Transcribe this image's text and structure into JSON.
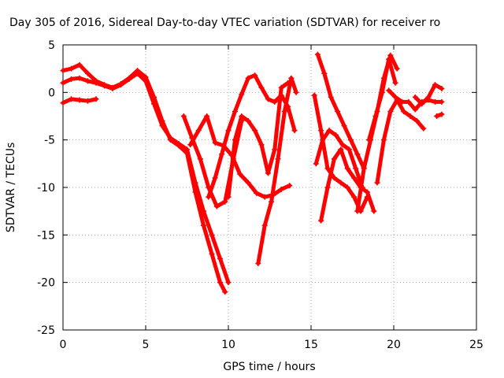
{
  "chart_data": {
    "type": "scatter",
    "title": "Day 305 of 2016, Sidereal Day-to-day VTEC variation (SDTVAR) for receiver ro",
    "xlabel": "GPS time / hours",
    "ylabel": "SDTVAR / TECUs",
    "xlim": [
      0,
      25
    ],
    "ylim": [
      -25,
      5
    ],
    "xticks": [
      "0",
      "5",
      "10",
      "15",
      "20",
      "25"
    ],
    "yticks": [
      "5",
      "0",
      "-5",
      "-10",
      "-15",
      "-20",
      "-25"
    ],
    "grid": true,
    "marker": "plus",
    "color": "#ff0000",
    "series": [
      {
        "x": [
          0.0,
          0.5,
          1.0,
          1.5,
          2.0,
          2.5,
          3.0,
          3.5,
          4.0,
          4.5,
          5.0,
          5.5,
          6.0,
          6.5,
          7.0,
          7.5,
          8.0,
          8.5,
          9.0,
          9.5,
          9.8
        ],
        "y": [
          2.3,
          2.5,
          2.9,
          2.0,
          1.2,
          0.8,
          0.5,
          0.9,
          1.5,
          2.3,
          1.6,
          -0.5,
          -3.0,
          -5.0,
          -5.6,
          -6.4,
          -10.5,
          -14.0,
          -17.0,
          -20.0,
          -21.0
        ]
      },
      {
        "x": [
          0.0,
          0.5,
          1.0,
          1.5,
          2.0,
          2.5,
          3.0,
          3.5,
          4.0,
          4.5,
          5.0,
          5.5,
          6.0,
          6.5,
          7.0,
          7.5,
          8.0,
          8.5,
          9.0,
          9.5,
          10.0
        ],
        "y": [
          1.0,
          1.4,
          1.5,
          1.2,
          1.0,
          0.7,
          0.4,
          0.8,
          1.4,
          2.0,
          1.2,
          -1.2,
          -3.5,
          -4.8,
          -5.4,
          -6.0,
          -9.5,
          -12.5,
          -15.0,
          -17.5,
          -20.0
        ]
      },
      {
        "x": [
          0.0,
          0.5,
          1.0,
          1.5,
          2.0
        ],
        "y": [
          -1.1,
          -0.7,
          -0.8,
          -0.9,
          -0.7
        ]
      },
      {
        "x": [
          7.3,
          7.8,
          8.3,
          8.8,
          9.3,
          9.8,
          10.3,
          10.8
        ],
        "y": [
          -2.5,
          -4.8,
          -7.0,
          -10.0,
          -12.0,
          -11.5,
          -7.0,
          -3.0
        ]
      },
      {
        "x": [
          7.7,
          8.2,
          8.7,
          9.2,
          9.7,
          10.2,
          10.7,
          11.2,
          11.7,
          12.2,
          12.7,
          13.2,
          13.7
        ],
        "y": [
          -5.5,
          -4.0,
          -2.5,
          -5.3,
          -5.6,
          -6.6,
          -8.6,
          -9.5,
          -10.6,
          -11.0,
          -10.8,
          -10.2,
          -9.8
        ]
      },
      {
        "x": [
          8.8,
          9.2,
          9.6,
          10.0,
          10.4,
          10.8,
          11.2,
          11.6,
          12.0,
          12.4,
          12.8,
          13.2,
          13.6,
          14.0
        ],
        "y": [
          -11.0,
          -9.0,
          -6.5,
          -4.0,
          -2.0,
          -0.2,
          1.5,
          1.8,
          0.5,
          -0.7,
          -1.0,
          -0.3,
          -1.5,
          -4.0
        ]
      },
      {
        "x": [
          10.0,
          10.4,
          10.8,
          11.2,
          11.6,
          12.0,
          12.4,
          12.8,
          13.2,
          13.6
        ],
        "y": [
          -11.0,
          -5.0,
          -2.5,
          -3.0,
          -4.0,
          -5.5,
          -8.5,
          -6.0,
          0.5,
          1.0
        ]
      },
      {
        "x": [
          11.8,
          12.2,
          12.6,
          13.0,
          13.4,
          13.8,
          14.1
        ],
        "y": [
          -18.0,
          -14.0,
          -11.5,
          -7.0,
          -2.0,
          1.5,
          0.0
        ]
      },
      {
        "x": [
          15.3,
          15.7,
          16.1,
          16.5,
          16.9,
          17.3,
          17.7,
          18.1
        ],
        "y": [
          -7.5,
          -5.0,
          -4.0,
          -4.5,
          -5.5,
          -6.0,
          -8.0,
          -10.0
        ]
      },
      {
        "x": [
          15.6,
          16.0,
          16.4,
          16.8,
          17.2,
          17.6,
          18.0,
          18.4,
          18.8
        ],
        "y": [
          -13.5,
          -10.0,
          -7.0,
          -6.0,
          -8.0,
          -9.0,
          -10.0,
          -10.5,
          -12.5
        ]
      },
      {
        "x": [
          15.2,
          15.6,
          16.0,
          16.4,
          16.8,
          17.2,
          17.6,
          18.0,
          18.4
        ],
        "y": [
          -0.3,
          -4.0,
          -8.0,
          -9.0,
          -9.5,
          -10.0,
          -11.0,
          -12.5,
          -11.0
        ]
      },
      {
        "x": [
          15.4,
          15.8,
          16.2,
          16.6,
          17.0,
          17.4,
          17.8,
          18.2
        ],
        "y": [
          4.0,
          2.0,
          -0.5,
          -2.0,
          -3.5,
          -5.0,
          -6.5,
          -8.0
        ]
      },
      {
        "x": [
          17.8,
          18.2,
          18.6,
          19.0,
          19.4,
          19.8,
          20.2
        ],
        "y": [
          -12.5,
          -8.0,
          -5.0,
          -2.0,
          1.5,
          3.9,
          2.5
        ]
      },
      {
        "x": [
          18.5,
          18.9,
          19.3,
          19.7,
          20.1
        ],
        "y": [
          -5.0,
          -2.5,
          0.0,
          3.5,
          1.0
        ]
      },
      {
        "x": [
          19.0,
          19.4,
          19.8,
          20.2,
          20.6,
          21.0,
          21.4,
          21.8
        ],
        "y": [
          -9.5,
          -5.0,
          -2.0,
          -0.8,
          -2.0,
          -2.5,
          -3.0,
          -3.8
        ]
      },
      {
        "x": [
          19.7,
          20.1,
          20.5,
          20.9,
          21.3,
          21.7,
          22.1,
          22.5,
          22.9
        ],
        "y": [
          0.2,
          -0.5,
          -1.0,
          -1.0,
          -1.8,
          -1.0,
          -0.8,
          -1.0,
          -1.0
        ]
      },
      {
        "x": [
          21.3,
          21.7,
          22.1,
          22.5,
          22.9
        ],
        "y": [
          -0.5,
          -1.2,
          -0.5,
          0.8,
          0.4
        ]
      },
      {
        "x": [
          22.6,
          22.9
        ],
        "y": [
          -2.5,
          -2.3
        ]
      }
    ]
  }
}
